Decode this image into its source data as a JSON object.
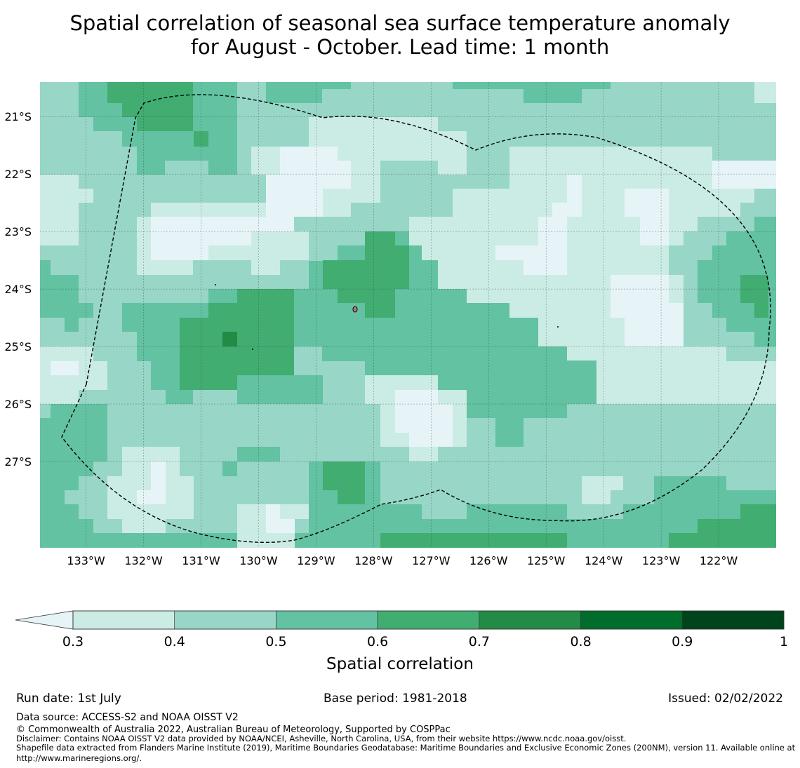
{
  "title": {
    "line1": "Spatial correlation of seasonal sea surface temperature anomaly",
    "line2": "for August - October. Lead time: 1 month"
  },
  "map": {
    "lon_labels": [
      "133°W",
      "132°W",
      "131°W",
      "130°W",
      "129°W",
      "128°W",
      "127°W",
      "126°W",
      "125°W",
      "124°W",
      "123°W",
      "122°W"
    ],
    "lat_labels": [
      "21°S",
      "22°S",
      "23°S",
      "24°S",
      "25°S",
      "26°S",
      "27°S"
    ],
    "lon_range": [
      -133.8,
      -121.0
    ],
    "lat_range": [
      -28.5,
      -20.4
    ],
    "colors": {
      "below_03": "#e6f4f8",
      "c03": "#cbece4",
      "c04": "#98d6c7",
      "c05": "#62c2a2",
      "c06": "#41ad71",
      "c07": "#228b45",
      "c08": "#006d2c",
      "c09": "#00441b"
    },
    "boundary": "Exclusive Economic Zone (dashed line)"
  },
  "colorbar": {
    "ticks": [
      "0.3",
      "0.4",
      "0.5",
      "0.6",
      "0.7",
      "0.8",
      "0.9",
      "1"
    ],
    "colors": [
      "#cbece4",
      "#98d6c7",
      "#62c2a2",
      "#41ad71",
      "#228b45",
      "#006d2c",
      "#00441b"
    ],
    "extend_color": "#e6f4f8",
    "label": "Spatial correlation"
  },
  "footer": {
    "run_date": "Run date: 1st July",
    "base_period": "Base period: 1981-2018",
    "issued": "Issued: 02/02/2022",
    "data_source": "Data source: ACCESS-S2 and NOAA OISST V2",
    "copyright": "© Commonwealth of Australia 2022, Australian Bureau of Meteorology, Supported by COSPPac",
    "disclaimer": "Disclaimer: Contains NOAA OISST V2 data provided by NOAA/NCEI, Asheville, North Carolina, USA, from their website https://www.ncdc.noaa.gov/oisst.",
    "shapefile": "Shapefile data extracted from Flanders Marine Institute (2019), Maritime Boundaries Geodatabase: Maritime Boundaries and Exclusive Economic Zones (200NM), version 11. Available online at http://www.marineregions.org/."
  }
}
